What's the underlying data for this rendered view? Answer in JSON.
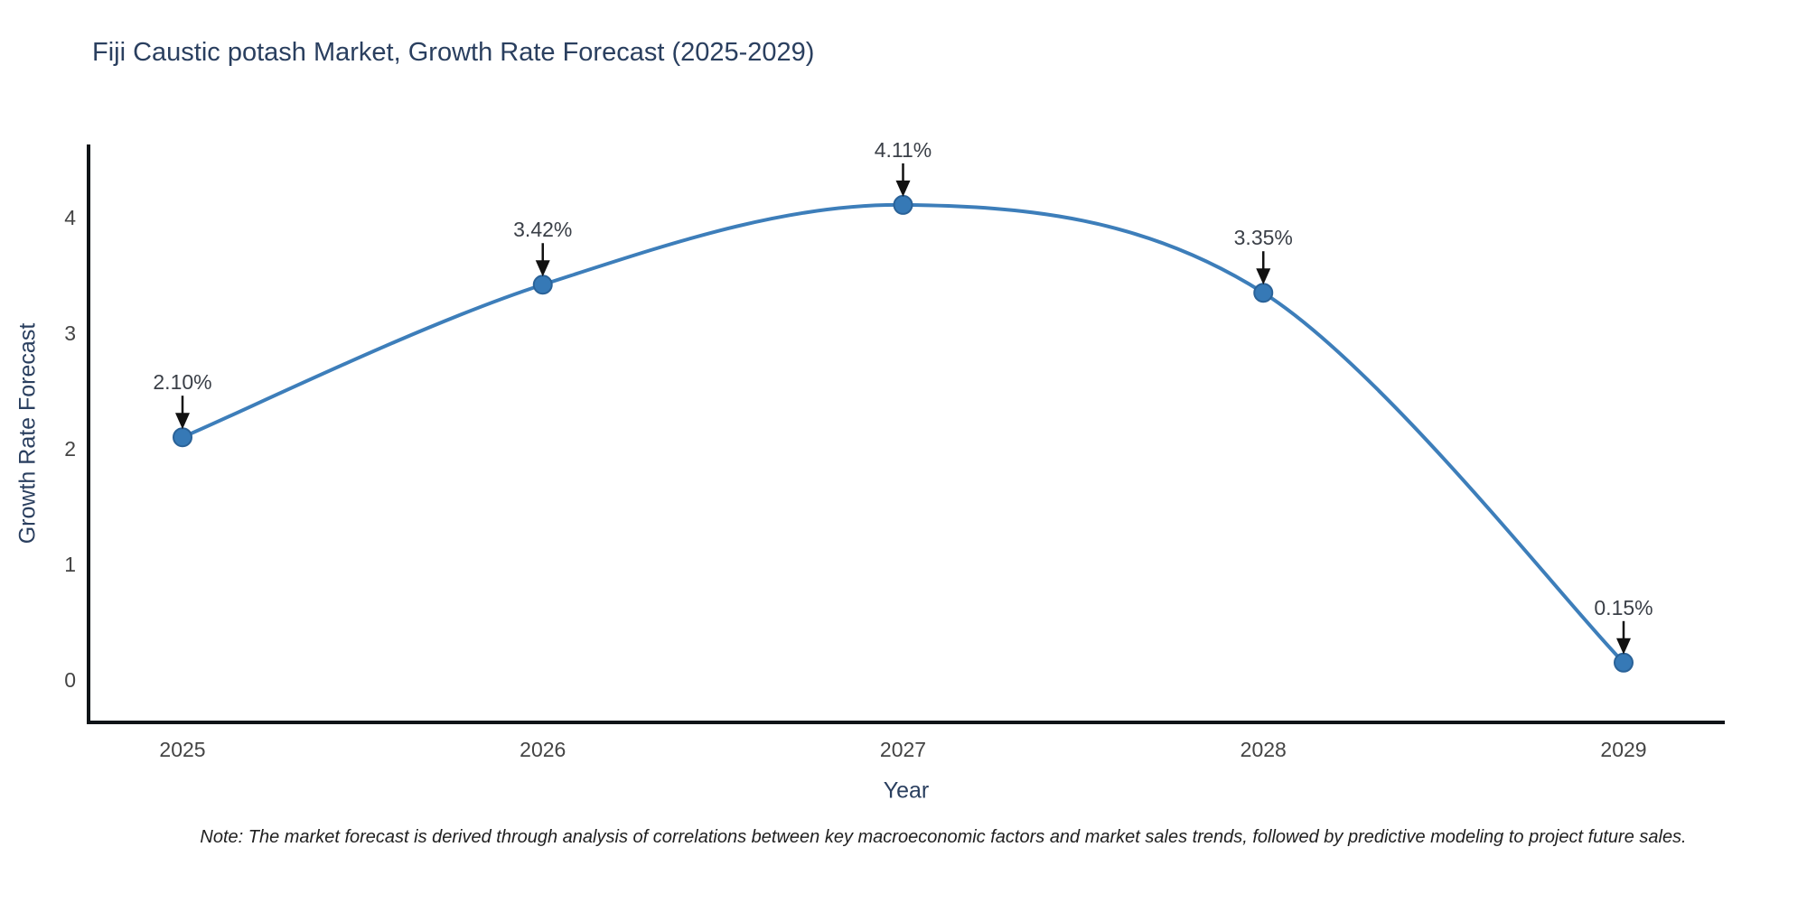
{
  "title": "Fiji Caustic potash Market, Growth Rate Forecast (2025-2029)",
  "note": "Note: The market forecast is derived through analysis of correlations between key macroeconomic factors and market sales trends, followed by predictive modeling to project future sales.",
  "chart_data": {
    "type": "line",
    "line_shape": "spline",
    "title": "Fiji Caustic potash Market, Growth Rate Forecast (2025-2029)",
    "xlabel": "Year",
    "ylabel": "Growth Rate Forecast",
    "categories": [
      "2025",
      "2026",
      "2027",
      "2028",
      "2029"
    ],
    "values": [
      2.1,
      3.42,
      4.11,
      3.35,
      0.15
    ],
    "point_labels": [
      "2.10%",
      "3.42%",
      "4.11%",
      "3.35%",
      "0.15%"
    ],
    "yticks": [
      0,
      1,
      2,
      3,
      4
    ],
    "ylim": [
      -0.4,
      4.65
    ],
    "grid": false,
    "legend": "none",
    "markers": true,
    "annotations_arrow": "down",
    "colors": {
      "line": "#3d7eba",
      "marker": "#3679b6",
      "marker_edge": "#2a6298",
      "axis": "#101418",
      "title": "#2a3f5f",
      "tick": "#444444",
      "annotation": "#3a3f47",
      "arrow": "#111111",
      "background": "#ffffff"
    }
  }
}
